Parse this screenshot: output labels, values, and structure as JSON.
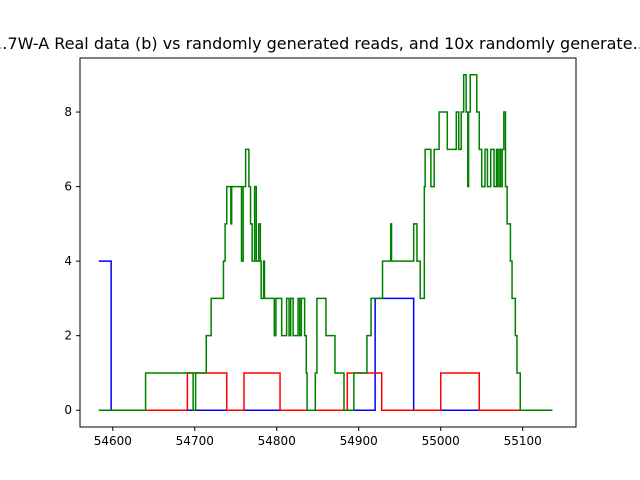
{
  "chart_data": {
    "type": "line",
    "title": "…7W-A Real data (b) vs randomly generated reads, and 10x randomly generate…",
    "xlabel": "",
    "ylabel": "",
    "xlim": [
      54560,
      55165
    ],
    "ylim": [
      -0.45,
      9.45
    ],
    "xticks": [
      54600,
      54700,
      54800,
      54900,
      55000,
      55100
    ],
    "yticks": [
      0,
      2,
      4,
      6,
      8
    ],
    "grid": false,
    "legend": "none",
    "series": [
      {
        "color": "#0000ff",
        "step": true,
        "x": [
          54583,
          54598,
          54920,
          54967,
          55136
        ],
        "y": [
          4,
          0,
          3,
          0,
          0
        ]
      },
      {
        "color": "#ff0000",
        "step": true,
        "x": [
          54583,
          54691,
          54739,
          54760,
          54804,
          54886,
          54889,
          54924,
          54928,
          55000,
          55047,
          55136
        ],
        "y": [
          0,
          1,
          0,
          1,
          0,
          1,
          1,
          1,
          0,
          1,
          0,
          0
        ]
      },
      {
        "color": "#008000",
        "step": true,
        "x": [
          54583,
          54640,
          54685,
          54698,
          54701,
          54714,
          54717,
          54720,
          54735,
          54737,
          54739,
          54744,
          54745,
          54757,
          54759,
          54760,
          54762,
          54766,
          54768,
          54770,
          54773,
          54775,
          54778,
          54780,
          54781,
          54784,
          54785,
          54797,
          54799,
          54806,
          54812,
          54813,
          54815,
          54817,
          54820,
          54826,
          54828,
          54830,
          54834,
          54836,
          54837,
          54847,
          54848,
          54849,
          54850,
          54860,
          54871,
          54876,
          54882,
          54894,
          54906,
          54910,
          54915,
          54920,
          54929,
          54937,
          54939,
          54940,
          54945,
          54966,
          54967,
          54970,
          54971,
          54975,
          54977,
          54980,
          54981,
          54988,
          54992,
          54998,
          55008,
          55019,
          55022,
          55025,
          55028,
          55031,
          55033,
          55034,
          55036,
          55044,
          55047,
          55050,
          55054,
          55057,
          55061,
          55065,
          55068,
          55069,
          55071,
          55073,
          55075,
          55077,
          55079,
          55081,
          55083,
          55085,
          55087,
          55089,
          55091,
          55093,
          55095,
          55097,
          55100,
          55104,
          55109,
          55115,
          55125,
          55131,
          55133,
          55136
        ],
        "y": [
          0,
          1,
          1,
          0,
          1,
          2,
          2,
          3,
          4,
          5,
          6,
          5,
          6,
          4,
          6,
          6,
          7,
          6,
          5,
          4,
          6,
          4,
          5,
          4,
          3,
          4,
          3,
          2,
          3,
          2,
          3,
          3,
          2,
          3,
          2,
          3,
          2,
          3,
          2,
          1,
          0,
          1,
          1,
          3,
          3,
          2,
          1,
          1,
          0,
          1,
          1,
          2,
          3,
          3,
          4,
          4,
          5,
          4,
          4,
          4,
          5,
          5,
          4,
          3,
          3,
          6,
          7,
          6,
          7,
          8,
          7,
          8,
          7,
          8,
          9,
          8,
          6,
          8,
          9,
          8,
          7,
          6,
          7,
          6,
          7,
          6,
          7,
          6,
          7,
          6,
          7,
          8,
          6,
          5,
          5,
          4,
          3,
          3,
          2,
          1,
          1,
          0,
          0,
          0,
          0,
          0,
          0,
          0,
          0,
          0
        ]
      }
    ]
  }
}
